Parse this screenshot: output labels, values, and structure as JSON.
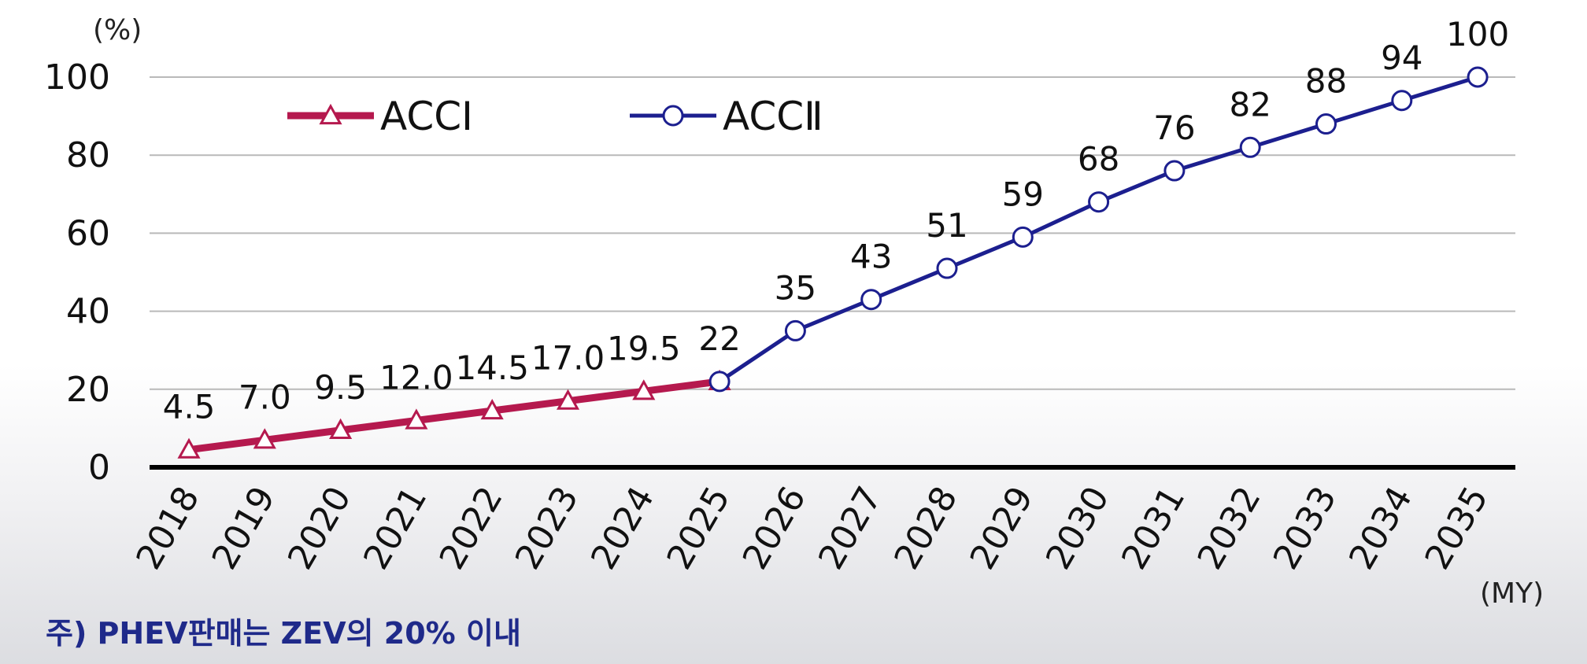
{
  "chart_data": {
    "type": "line",
    "title": "",
    "xlabel": "(MY)",
    "ylabel": "(%)",
    "ylim": [
      0,
      100
    ],
    "yticks": [
      "0",
      "20",
      "40",
      "60",
      "80",
      "100"
    ],
    "grid": true,
    "legend_position": "top-left",
    "categories": [
      "2018",
      "2019",
      "2020",
      "2021",
      "2022",
      "2023",
      "2024",
      "2025",
      "2026",
      "2027",
      "2028",
      "2029",
      "2030",
      "2031",
      "2032",
      "2033",
      "2034",
      "2035"
    ],
    "series": [
      {
        "name": "ACCⅠ",
        "marker": "triangle",
        "color": "#b5194e",
        "x": [
          "2018",
          "2019",
          "2020",
          "2021",
          "2022",
          "2023",
          "2024",
          "2025"
        ],
        "values": [
          4.5,
          7.0,
          9.5,
          12.0,
          14.5,
          17.0,
          19.5,
          22
        ],
        "labels": [
          "4.5",
          "7.0",
          "9.5",
          "12.0",
          "14.5",
          "17.0",
          "19.5",
          "22"
        ]
      },
      {
        "name": "ACCⅡ",
        "marker": "circle",
        "color": "#1c1f8f",
        "x": [
          "2025",
          "2026",
          "2027",
          "2028",
          "2029",
          "2030",
          "2031",
          "2032",
          "2033",
          "2034",
          "2035"
        ],
        "values": [
          22,
          35,
          43,
          51,
          59,
          68,
          76,
          82,
          88,
          94,
          100
        ],
        "labels": [
          "",
          "35",
          "43",
          "51",
          "59",
          "68",
          "76",
          "82",
          "88",
          "94",
          "100"
        ]
      }
    ]
  },
  "footnote": "주) PHEV판매는 ZEV의 20% 이내"
}
